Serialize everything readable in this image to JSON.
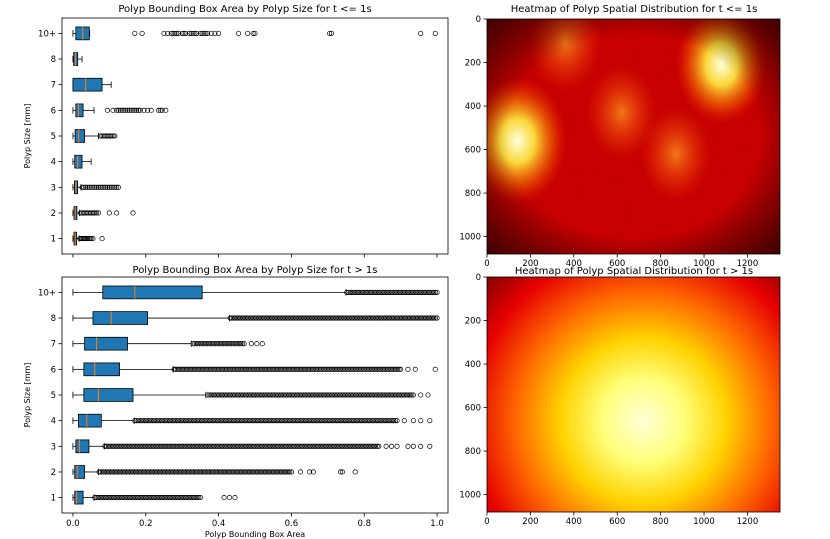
{
  "colors": {
    "box_fill": "#1f77b4",
    "median": "#ff7f0e",
    "frame": "#000000",
    "heat_low": "#3a0000",
    "heat_mid": "#ff0000",
    "heat_high": "#ffffcc"
  },
  "chart_data": [
    {
      "id": "box_top",
      "type": "box",
      "title": "Polyp Bounding Box Area by Polyp Size for t <= 1s",
      "xlabel": "",
      "ylabel": "Polyp Size [mm]",
      "xlim": [
        -0.03,
        1.03
      ],
      "xticks": [
        0.0,
        0.2,
        0.4,
        0.6,
        0.8,
        1.0
      ],
      "xticklabels": [
        "",
        "",
        "",
        "",
        "",
        ""
      ],
      "categories": [
        "1",
        "2",
        "3",
        "4",
        "5",
        "6",
        "7",
        "8",
        "10+"
      ],
      "boxes": [
        {
          "q1": 0.003,
          "median": 0.006,
          "q3": 0.01,
          "lo": 0.0,
          "hi": 0.017,
          "fliers": [
            0.019,
            0.022,
            0.025,
            0.028,
            0.031,
            0.034,
            0.037,
            0.04,
            0.044,
            0.047,
            0.05,
            0.055,
            0.08
          ]
        },
        {
          "q1": 0.003,
          "median": 0.006,
          "q3": 0.011,
          "lo": 0.0,
          "hi": 0.018,
          "fliers": [
            0.021,
            0.025,
            0.029,
            0.033,
            0.037,
            0.041,
            0.045,
            0.049,
            0.053,
            0.057,
            0.061,
            0.065,
            0.07,
            0.1,
            0.12,
            0.165
          ]
        },
        {
          "q1": 0.004,
          "median": 0.008,
          "q3": 0.013,
          "lo": 0.0,
          "hi": 0.022,
          "fliers": [
            0.025,
            0.03,
            0.035,
            0.04,
            0.045,
            0.05,
            0.055,
            0.06,
            0.065,
            0.07,
            0.075,
            0.08,
            0.085,
            0.09,
            0.095,
            0.1,
            0.105,
            0.11,
            0.115,
            0.12,
            0.125
          ]
        },
        {
          "q1": 0.005,
          "median": 0.013,
          "q3": 0.025,
          "lo": 0.0,
          "hi": 0.05,
          "fliers": []
        },
        {
          "q1": 0.006,
          "median": 0.016,
          "q3": 0.032,
          "lo": 0.0,
          "hi": 0.07,
          "fliers": [
            0.075,
            0.079,
            0.083,
            0.087,
            0.091,
            0.095,
            0.099,
            0.103,
            0.107,
            0.111,
            0.115
          ]
        },
        {
          "q1": 0.008,
          "median": 0.015,
          "q3": 0.028,
          "lo": 0.0,
          "hi": 0.058,
          "fliers": [
            0.095,
            0.11,
            0.12,
            0.125,
            0.13,
            0.135,
            0.14,
            0.145,
            0.15,
            0.155,
            0.16,
            0.165,
            0.17,
            0.175,
            0.18,
            0.185,
            0.195,
            0.205,
            0.215,
            0.235,
            0.24,
            0.245,
            0.255
          ]
        },
        {
          "q1": 0.0,
          "median": 0.035,
          "q3": 0.08,
          "lo": 0.0,
          "hi": 0.105,
          "fliers": []
        },
        {
          "q1": 0.002,
          "median": 0.007,
          "q3": 0.013,
          "lo": 0.0,
          "hi": 0.025,
          "fliers": []
        },
        {
          "q1": 0.008,
          "median": 0.027,
          "q3": 0.045,
          "lo": 0.0,
          "hi": 0.046,
          "fliers": [
            0.17,
            0.19,
            0.25,
            0.26,
            0.27,
            0.275,
            0.28,
            0.285,
            0.29,
            0.3,
            0.305,
            0.31,
            0.32,
            0.325,
            0.33,
            0.335,
            0.34,
            0.35,
            0.355,
            0.36,
            0.365,
            0.37,
            0.38,
            0.39,
            0.4,
            0.455,
            0.48,
            0.495,
            0.5,
            0.705,
            0.71,
            0.955,
            0.995
          ]
        }
      ]
    },
    {
      "id": "box_bottom",
      "type": "box",
      "title": "Polyp Bounding Box Area by Polyp Size for t > 1s",
      "xlabel": "Polyp Bounding Box Area",
      "ylabel": "Polyp Size [mm]",
      "xlim": [
        -0.03,
        1.03
      ],
      "xticks": [
        0.0,
        0.2,
        0.4,
        0.6,
        0.8,
        1.0
      ],
      "xticklabels": [
        "0.0",
        "0.2",
        "0.4",
        "0.6",
        "0.8",
        "1.0"
      ],
      "categories": [
        "1",
        "2",
        "3",
        "4",
        "5",
        "6",
        "7",
        "8",
        "10+"
      ],
      "boxes": [
        {
          "q1": 0.005,
          "median": 0.01,
          "q3": 0.028,
          "lo": 0.0,
          "hi": 0.058,
          "fliers_range": [
            0.06,
            0.35
          ],
          "fliers": [
            0.415,
            0.43,
            0.445
          ]
        },
        {
          "q1": 0.005,
          "median": 0.012,
          "q3": 0.032,
          "lo": 0.0,
          "hi": 0.07,
          "fliers_range": [
            0.072,
            0.6
          ],
          "fliers": [
            0.625,
            0.65,
            0.66,
            0.735,
            0.74,
            0.775
          ]
        },
        {
          "q1": 0.008,
          "median": 0.018,
          "q3": 0.044,
          "lo": 0.0,
          "hi": 0.086,
          "fliers_range": [
            0.088,
            0.84
          ],
          "fliers": [
            0.86,
            0.875,
            0.89,
            0.92,
            0.935,
            0.955,
            0.98
          ]
        },
        {
          "q1": 0.015,
          "median": 0.038,
          "q3": 0.078,
          "lo": 0.0,
          "hi": 0.168,
          "fliers_range": [
            0.17,
            0.89
          ],
          "fliers": [
            0.91,
            0.935,
            0.955,
            0.98
          ]
        },
        {
          "q1": 0.03,
          "median": 0.07,
          "q3": 0.165,
          "lo": 0.0,
          "hi": 0.365,
          "fliers_range": [
            0.37,
            0.935
          ],
          "fliers": [
            0.955,
            0.975
          ]
        },
        {
          "q1": 0.03,
          "median": 0.06,
          "q3": 0.128,
          "lo": 0.0,
          "hi": 0.275,
          "fliers_range": [
            0.278,
            0.9
          ],
          "fliers": [
            0.92,
            0.94,
            0.995
          ]
        },
        {
          "q1": 0.032,
          "median": 0.065,
          "q3": 0.15,
          "lo": 0.0,
          "hi": 0.325,
          "fliers_range": [
            0.33,
            0.47
          ],
          "fliers": [
            0.49,
            0.505,
            0.52
          ]
        },
        {
          "q1": 0.055,
          "median": 0.105,
          "q3": 0.205,
          "lo": 0.0,
          "hi": 0.43,
          "fliers_range": [
            0.432,
            1.0
          ],
          "fliers": []
        },
        {
          "q1": 0.082,
          "median": 0.17,
          "q3": 0.355,
          "lo": 0.0,
          "hi": 0.75,
          "fliers_range": [
            0.752,
            1.0
          ],
          "fliers": []
        }
      ]
    },
    {
      "id": "heat_top",
      "type": "heatmap",
      "title": "Heatmap of Polyp Spatial Distribution for t <= 1s",
      "colormap": "hot",
      "xlim": [
        0,
        1350
      ],
      "ylim": [
        1080,
        0
      ],
      "xticks": [
        0,
        200,
        400,
        600,
        800,
        1000,
        1200
      ],
      "xticklabels": [
        "0",
        "200",
        "400",
        "600",
        "800",
        "1000",
        "1200"
      ],
      "yticks": [
        0,
        200,
        400,
        600,
        800,
        1000
      ],
      "yticklabels": [
        "0",
        "200",
        "400",
        "600",
        "800",
        "1000"
      ],
      "hotspots": [
        {
          "x": 140,
          "y": 560,
          "intensity": 1.0
        },
        {
          "x": 1080,
          "y": 210,
          "intensity": 0.85
        },
        {
          "x": 620,
          "y": 430,
          "intensity": 0.45
        },
        {
          "x": 870,
          "y": 620,
          "intensity": 0.45
        },
        {
          "x": 360,
          "y": 110,
          "intensity": 0.5
        }
      ]
    },
    {
      "id": "heat_bottom",
      "type": "heatmap",
      "title": "Heatmap of Polyp Spatial Distribution for t > 1s",
      "colormap": "hot",
      "xlim": [
        0,
        1350
      ],
      "ylim": [
        1080,
        0
      ],
      "xticks": [
        0,
        200,
        400,
        600,
        800,
        1000,
        1200
      ],
      "xticklabels": [
        "0",
        "200",
        "400",
        "600",
        "800",
        "1000",
        "1200"
      ],
      "yticks": [
        0,
        200,
        400,
        600,
        800,
        1000
      ],
      "yticklabels": [
        "0",
        "200",
        "400",
        "600",
        "800",
        "1000"
      ],
      "hotspots": [
        {
          "x": 720,
          "y": 660,
          "intensity": 1.0
        }
      ]
    }
  ]
}
